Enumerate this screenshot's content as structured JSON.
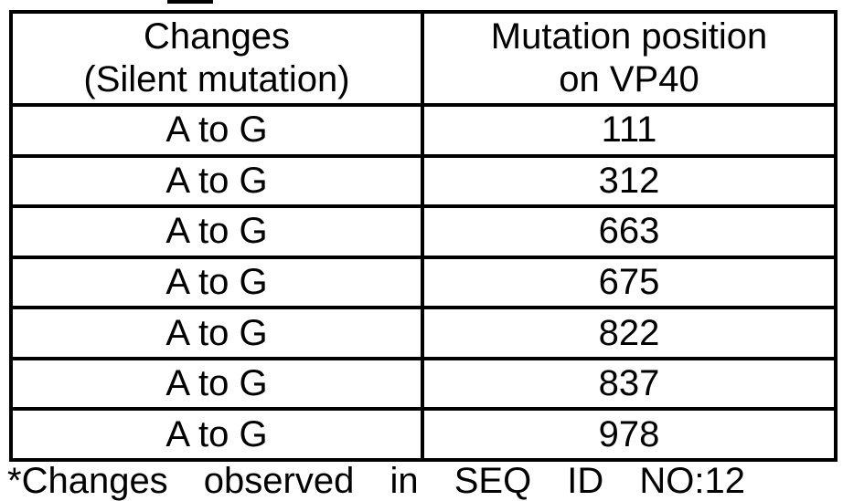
{
  "table": {
    "columns": [
      {
        "label_line1": "Changes",
        "label_line2": "(Silent mutation)"
      },
      {
        "label_line1": "Mutation position",
        "label_line2": "on VP40"
      }
    ],
    "rows": [
      {
        "change": "A to G",
        "position": "111"
      },
      {
        "change": "A to G",
        "position": "312"
      },
      {
        "change": "A to G",
        "position": "663"
      },
      {
        "change": "A to G",
        "position": "675"
      },
      {
        "change": "A to G",
        "position": "822"
      },
      {
        "change": "A to G",
        "position": "837"
      },
      {
        "change": "A to G",
        "position": "978"
      }
    ]
  },
  "caption_fragment": "*Changes observed in SEQ ID NO:12",
  "colors": {
    "border": "#000000",
    "text": "#000000",
    "background": "#ffffff"
  }
}
